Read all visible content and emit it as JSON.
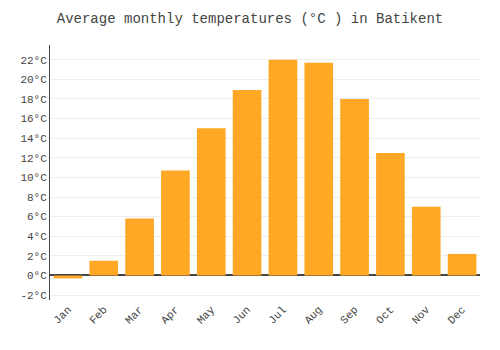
{
  "chart_data": {
    "type": "bar",
    "title": "Average monthly temperatures (°C ) in Batikent",
    "categories": [
      "Jan",
      "Feb",
      "Mar",
      "Apr",
      "May",
      "Jun",
      "Jul",
      "Aug",
      "Sep",
      "Oct",
      "Nov",
      "Dec"
    ],
    "values": [
      -0.3,
      1.5,
      5.8,
      10.7,
      15.0,
      18.9,
      22.0,
      21.7,
      18.0,
      12.5,
      7.0,
      2.2
    ],
    "color": "#FFA826",
    "ylim": [
      -2.5,
      23.5
    ],
    "yticks": [
      {
        "value": -2,
        "label": "-2°C"
      },
      {
        "value": 0,
        "label": "0°C"
      },
      {
        "value": 2,
        "label": "2°C"
      },
      {
        "value": 4,
        "label": "4°C"
      },
      {
        "value": 6,
        "label": "6°C"
      },
      {
        "value": 8,
        "label": "8°C"
      },
      {
        "value": 10,
        "label": "10°C"
      },
      {
        "value": 12,
        "label": "12°C"
      },
      {
        "value": 14,
        "label": "14°C"
      },
      {
        "value": 16,
        "label": "16°C"
      },
      {
        "value": 18,
        "label": "18°C"
      },
      {
        "value": 20,
        "label": "20°C"
      },
      {
        "value": 22,
        "label": "22°C"
      }
    ],
    "grid": true
  }
}
